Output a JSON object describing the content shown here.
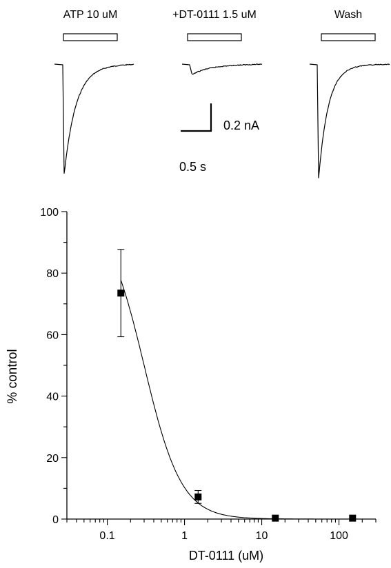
{
  "traces": [
    {
      "label": "ATP 10 uM",
      "peak_nA": -0.72
    },
    {
      "label": "+DT-0111 1.5 uM",
      "peak_nA": -0.06
    },
    {
      "label": "Wash",
      "peak_nA": -0.75
    }
  ],
  "scale_bar": {
    "current_label": "0.2 nA",
    "time_label": "0.5 s"
  },
  "chart_data": {
    "type": "scatter",
    "xlabel": "DT-0111  (uM)",
    "ylabel": "% control",
    "x_scale": "log",
    "xlim": [
      0.03,
      300
    ],
    "ylim": [
      0,
      100
    ],
    "x_ticks": [
      0.1,
      1,
      10,
      100
    ],
    "x_tick_labels": [
      "0.1",
      "1",
      "10",
      "100"
    ],
    "y_ticks": [
      0,
      20,
      40,
      60,
      80,
      100
    ],
    "y_tick_labels": [
      "0",
      "20",
      "40",
      "60",
      "80",
      "100"
    ],
    "series": [
      {
        "points": [
          {
            "x": 0.15,
            "y": 73.5,
            "err": 14.2
          },
          {
            "x": 1.5,
            "y": 7.2,
            "err": 2.1
          },
          {
            "x": 15,
            "y": 0.3,
            "err": 0
          },
          {
            "x": 150,
            "y": 0.3,
            "err": 0
          }
        ],
        "fit": {
          "model": "hill",
          "top": 100,
          "ic50_uM": 0.3,
          "hill_slope": 1.8
        }
      }
    ],
    "grid": false,
    "legend": "none"
  }
}
